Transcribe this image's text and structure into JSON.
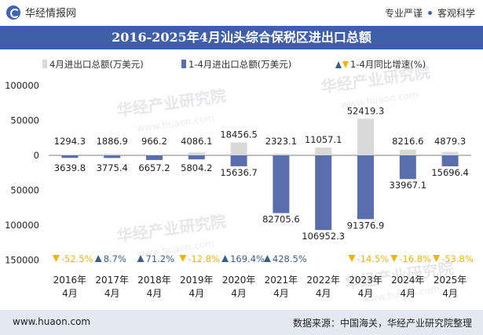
{
  "header": {
    "brand": "华经情报网",
    "tagline_left": "专业严谨",
    "tagline_right": "客观科学",
    "title": "2016-2025年4月汕头综合保税区进出口总额"
  },
  "footer": {
    "website": "www.huaon.com",
    "source": "数据来源：中国海关，华经产业研究院整理"
  },
  "watermark": "华经产业研究院",
  "watermark_url": "www.huaon.com",
  "chart_data": {
    "type": "bar",
    "categories": [
      "2016年\n4月",
      "2017年\n4月",
      "2018年\n4月",
      "2019年\n4月",
      "2020年\n4月",
      "2021年\n4月",
      "2022年\n4月",
      "2023年\n4月",
      "2024年\n4月",
      "2025年\n4月"
    ],
    "series": [
      {
        "name": "4月进出口总额(万美元)",
        "color": "#d9d9d9",
        "values": [
          1294.3,
          1886.9,
          966.2,
          4086.1,
          18456.5,
          2323.1,
          11057.1,
          52419.3,
          8216.6,
          4879.3
        ],
        "value_labels": [
          "1294.3",
          "1886.9",
          "966.2",
          "4086.1",
          "18456.5",
          "2323.1",
          "11057.1",
          "52419.3",
          "8216.6",
          "4879.3"
        ]
      },
      {
        "name": "1-4月进出口总额(万美元)",
        "color": "#5a6ead",
        "values": [
          3639.8,
          3775.4,
          6657.2,
          5804.2,
          15636.7,
          82705.6,
          106952.3,
          91376.9,
          33967.1,
          15696.4
        ],
        "value_labels": [
          "3639.8",
          "3775.4",
          "6657.2",
          "5804.2",
          "15636.7",
          "82705.6",
          "106952.3",
          "91376.9",
          "33967.1",
          "15696.4"
        ]
      },
      {
        "name": "1-4月同比增速(%)",
        "values": [
          -52.5,
          8.7,
          71.2,
          -12.8,
          169.4,
          428.5,
          null,
          -14.5,
          -16.8,
          -53.8
        ],
        "value_labels": [
          "-52.5%",
          "8.7%",
          "71.2%",
          "-12.8%",
          "169.4%",
          "428.5%",
          "",
          "-14.5%",
          "-16.8%",
          "-53.8%"
        ],
        "up_color": "#3a5f8a",
        "down_color": "#f0b400"
      }
    ],
    "y_tick_labels": [
      "100000",
      "50000",
      "0",
      "50000",
      "100000",
      "150000"
    ],
    "y_tick_values": [
      100000,
      50000,
      0,
      -50000,
      -100000,
      -150000
    ],
    "ylim": [
      -150000,
      100000
    ],
    "legend": [
      "4月进出口总额(万美元)",
      "1-4月进出口总额(万美元)",
      "1-4月同比增速(%)"
    ],
    "legend_position": "top",
    "grid": false
  }
}
